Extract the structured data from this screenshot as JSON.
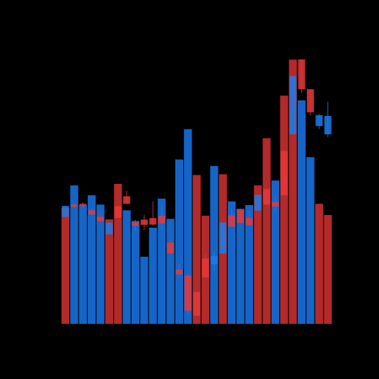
{
  "chart_data": {
    "type": "bar",
    "title": "",
    "xlabel": "",
    "ylabel": "",
    "grid": false,
    "legend": "none",
    "ylim": [
      0,
      100
    ],
    "colors": {
      "background": "#000000",
      "up": "#1565c8",
      "down": "#b22a2a",
      "candle_up": "#1e7ae8",
      "candle_down": "#e53838"
    },
    "values": [
      44.7,
      53.4,
      45.8,
      49.6,
      46.0,
      40.3,
      54.0,
      43.8,
      39.7,
      25.9,
      37.1,
      48.3,
      40.5,
      63.4,
      75.1,
      57.4,
      41.7,
      60.9,
      57.7,
      47.2,
      44.4,
      45.8,
      53.4,
      71.6,
      55.3,
      88.0,
      101.9,
      86.2,
      64.3,
      46.3,
      42.0
    ],
    "directions": [
      "down",
      "up",
      "up",
      "up",
      "up",
      "down",
      "down",
      "up",
      "up",
      "up",
      "up",
      "up",
      "up",
      "up",
      "up",
      "down",
      "down",
      "up",
      "down",
      "up",
      "up",
      "up",
      "down",
      "down",
      "up",
      "down",
      "down",
      "up",
      "up",
      "down",
      "down"
    ],
    "candles": [
      {
        "open": 41.3,
        "close": 45.5,
        "high": 45.5,
        "low": 41.3
      },
      {
        "open": 46.0,
        "close": 45.1,
        "high": 46.6,
        "low": 44.7
      },
      {
        "open": 46.3,
        "close": 45.5,
        "high": 46.9,
        "low": 44.4
      },
      {
        "open": 43.8,
        "close": 42.2,
        "high": 44.4,
        "low": 41.8
      },
      {
        "open": 41.3,
        "close": 39.6,
        "high": 42.6,
        "low": 38.8
      },
      {
        "open": 34.5,
        "close": 39.1,
        "high": 39.1,
        "low": 34.5
      },
      {
        "open": 45.4,
        "close": 40.9,
        "high": 45.4,
        "low": 40.9
      },
      {
        "open": 49.2,
        "close": 46.3,
        "high": 51.3,
        "low": 46.3
      },
      {
        "open": 39.2,
        "close": 37.8,
        "high": 40.1,
        "low": 35.9
      },
      {
        "open": 40.2,
        "close": 38.2,
        "high": 42.1,
        "low": 36.1
      },
      {
        "open": 40.8,
        "close": 38.3,
        "high": 47.2,
        "low": 37.8
      },
      {
        "open": 41.7,
        "close": 38.7,
        "high": 46.1,
        "low": 36.2
      },
      {
        "open": 31.3,
        "close": 27.2,
        "high": 32.6,
        "low": 26.7
      },
      {
        "open": 20.9,
        "close": 19.1,
        "high": 23.0,
        "low": 18.4
      },
      {
        "open": 18.6,
        "close": 5.1,
        "high": 19.0,
        "low": 4.0
      },
      {
        "open": 12.3,
        "close": 3.1,
        "high": 12.3,
        "low": 3.1
      },
      {
        "open": 25.2,
        "close": 17.9,
        "high": 26.8,
        "low": 17.9
      },
      {
        "open": 23.0,
        "close": 26.1,
        "high": 27.9,
        "low": 20.5
      },
      {
        "open": 27.1,
        "close": 39.1,
        "high": 39.1,
        "low": 27.1
      },
      {
        "open": 41.9,
        "close": 37.5,
        "high": 44.3,
        "low": 37.5
      },
      {
        "open": 44.1,
        "close": 38.9,
        "high": 44.3,
        "low": 38.9
      },
      {
        "open": 40.9,
        "close": 38.0,
        "high": 43.2,
        "low": 38.0
      },
      {
        "open": 43.7,
        "close": 49.8,
        "high": 49.8,
        "low": 43.7
      },
      {
        "open": 52.0,
        "close": 46.0,
        "high": 52.0,
        "low": 46.0
      },
      {
        "open": 47.0,
        "close": 45.2,
        "high": 49.6,
        "low": 43.5
      },
      {
        "open": 66.7,
        "close": 49.6,
        "high": 66.7,
        "low": 49.6
      },
      {
        "open": 73.1,
        "close": 95.6,
        "high": 95.6,
        "low": 73.1
      },
      {
        "open": 102.0,
        "close": 90.5,
        "high": 102.0,
        "low": 89.0
      },
      {
        "open": 90.5,
        "close": 81.6,
        "high": 90.5,
        "low": 80.5
      },
      {
        "open": 76.3,
        "close": 80.5,
        "high": 81.0,
        "low": 75.2
      },
      {
        "open": 73.1,
        "close": 80.2,
        "high": 85.7,
        "low": 72.0
      }
    ]
  }
}
